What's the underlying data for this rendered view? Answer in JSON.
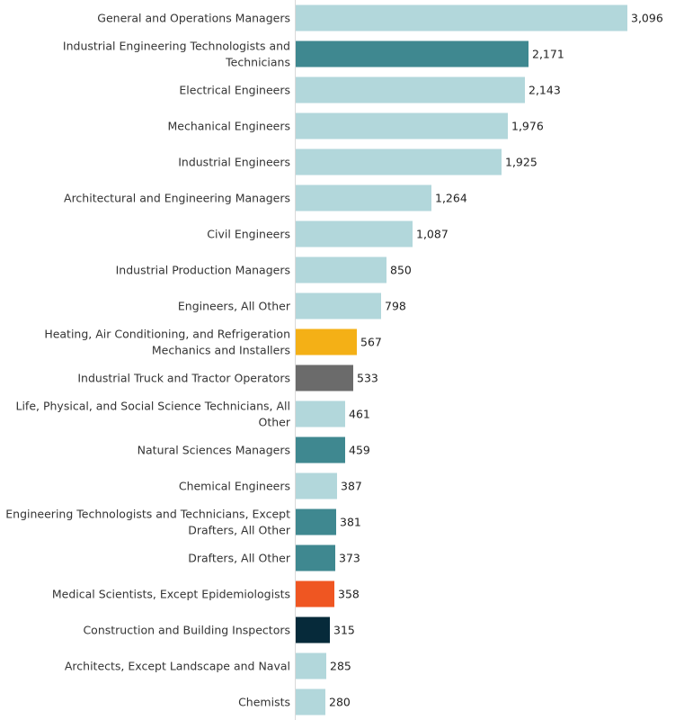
{
  "chart_data": {
    "type": "bar",
    "orientation": "horizontal",
    "title": "",
    "xlabel": "",
    "ylabel": "",
    "xlim": [
      0,
      3096
    ],
    "grid": false,
    "categories": [
      "General and Operations Managers",
      "Industrial Engineering Technologists and Technicians",
      "Electrical Engineers",
      "Mechanical Engineers",
      "Industrial Engineers",
      "Architectural and Engineering Managers",
      "Civil Engineers",
      "Industrial Production Managers",
      "Engineers, All Other",
      "Heating, Air Conditioning, and Refrigeration Mechanics and Installers",
      "Industrial Truck and Tractor Operators",
      "Life, Physical, and Social Science Technicians, All Other",
      "Natural Sciences Managers",
      "Chemical Engineers",
      "Engineering Technologists and Technicians, Except Drafters, All Other",
      "Drafters, All Other",
      "Medical Scientists, Except Epidemiologists",
      "Construction and Building Inspectors",
      "Architects, Except Landscape and Naval",
      "Chemists"
    ],
    "label_lines": [
      [
        "General and Operations Managers"
      ],
      [
        "Industrial Engineering Technologists and",
        "Technicians"
      ],
      [
        "Electrical Engineers"
      ],
      [
        "Mechanical Engineers"
      ],
      [
        "Industrial Engineers"
      ],
      [
        "Architectural and Engineering Managers"
      ],
      [
        "Civil Engineers"
      ],
      [
        "Industrial Production Managers"
      ],
      [
        "Engineers, All Other"
      ],
      [
        "Heating, Air Conditioning, and Refrigeration",
        "Mechanics and Installers"
      ],
      [
        "Industrial Truck and Tractor Operators"
      ],
      [
        "Life, Physical, and Social Science Technicians, All",
        "Other"
      ],
      [
        "Natural Sciences Managers"
      ],
      [
        "Chemical Engineers"
      ],
      [
        "Engineering Technologists and Technicians, Except",
        "Drafters, All Other"
      ],
      [
        "Drafters, All Other"
      ],
      [
        "Medical Scientists, Except Epidemiologists"
      ],
      [
        "Construction and Building Inspectors"
      ],
      [
        "Architects, Except Landscape and Naval"
      ],
      [
        "Chemists"
      ]
    ],
    "values": [
      3096,
      2171,
      2143,
      1976,
      1925,
      1264,
      1087,
      850,
      798,
      567,
      533,
      461,
      459,
      387,
      381,
      373,
      358,
      315,
      285,
      280
    ],
    "value_labels": [
      "3,096",
      "2,171",
      "2,143",
      "1,976",
      "1,925",
      "1,264",
      "1,087",
      "850",
      "798",
      "567",
      "533",
      "461",
      "459",
      "387",
      "381",
      "373",
      "358",
      "315",
      "285",
      "280"
    ],
    "colors": [
      "#b2d7db",
      "#3f8890",
      "#b2d7db",
      "#b2d7db",
      "#b2d7db",
      "#b2d7db",
      "#b2d7db",
      "#b2d7db",
      "#b2d7db",
      "#f4b016",
      "#6b6b6b",
      "#b2d7db",
      "#3f8890",
      "#b2d7db",
      "#3f8890",
      "#3f8890",
      "#ef5622",
      "#062a3a",
      "#b2d7db",
      "#b2d7db"
    ]
  }
}
